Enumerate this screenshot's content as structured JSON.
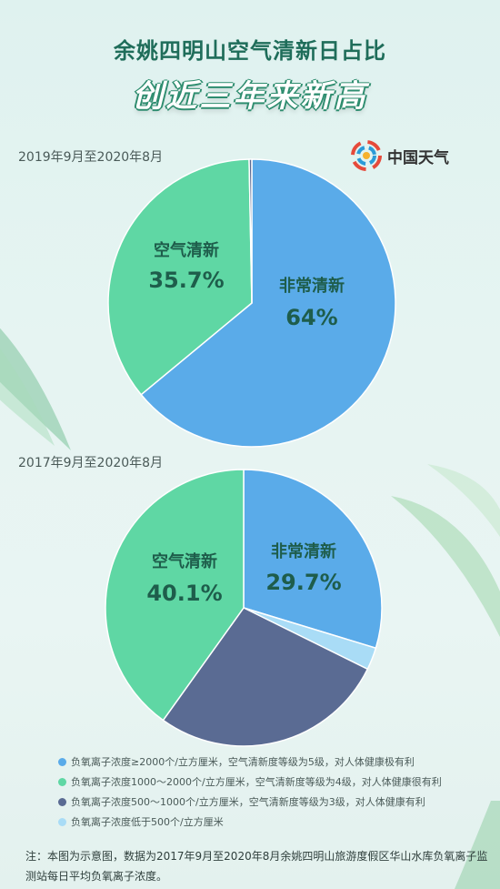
{
  "header": {
    "title": "余姚四明山空气清新日占比",
    "subtitle": "创近三年来新高"
  },
  "brand": {
    "name": "中国天气",
    "icon": "swirl-logo-icon"
  },
  "colors": {
    "very_fresh": "#5aabe9",
    "fresh": "#5fd7a4",
    "moderate": "#5a6b93",
    "low": "#a9dcf6",
    "label_dark": "#1e5d4b"
  },
  "chart_data": [
    {
      "type": "pie",
      "title": "2019年9月至2020年8月",
      "slices": [
        {
          "name": "非常清新",
          "value": 64.0,
          "label": "非常清新",
          "value_label": "64%"
        },
        {
          "name": "空气清新",
          "value": 35.7,
          "label": "空气清新",
          "value_label": "35.7%"
        },
        {
          "name": "负氧离子浓度500～1000个/立方厘米",
          "value": 0.3,
          "label": "",
          "value_label": ""
        }
      ]
    },
    {
      "type": "pie",
      "title": "2017年9月至2020年8月",
      "slices": [
        {
          "name": "非常清新",
          "value": 29.7,
          "label": "非常清新",
          "value_label": "29.7%"
        },
        {
          "name": "负氧离子浓度低于500个/立方厘米",
          "value": 2.6,
          "label": "",
          "value_label": ""
        },
        {
          "name": "负氧离子浓度500～1000个/立方厘米",
          "value": 27.6,
          "label": "",
          "value_label": ""
        },
        {
          "name": "空气清新",
          "value": 40.1,
          "label": "空气清新",
          "value_label": "40.1%"
        }
      ]
    }
  ],
  "legend": [
    {
      "color": "#5aabe9",
      "text": "负氧离子浓度≥2000个/立方厘米，空气清新度等级为5级，对人体健康极有利"
    },
    {
      "color": "#5fd7a4",
      "text": "负氧离子浓度1000～2000个/立方厘米，空气清新度等级为4级，对人体健康很有利"
    },
    {
      "color": "#5a6b93",
      "text": "负氧离子浓度500～1000个/立方厘米，空气清新度等级为3级，对人体健康有利"
    },
    {
      "color": "#a9dcf6",
      "text": "负氧离子浓度低于500个/立方厘米"
    }
  ],
  "note": "注：本图为示意图，数据为2017年9月至2020年8月余姚四明山旅游度假区华山水库负氧离子监测站每日平均负氧离子浓度。"
}
